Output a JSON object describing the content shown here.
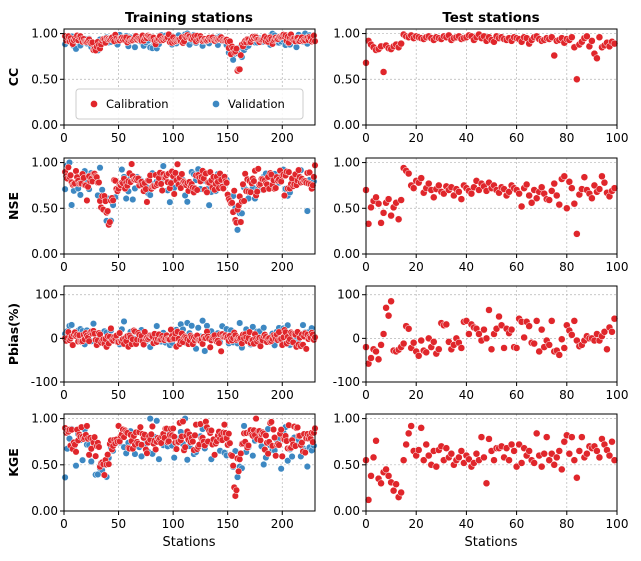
{
  "chart_data": {
    "type": "scatter",
    "column_titles": [
      "Training stations",
      "Test stations"
    ],
    "xlabel": "Stations",
    "legend": {
      "placement": "lower-center (CC training panel)",
      "entries": [
        {
          "name": "Calibration",
          "color": "#e0262b"
        },
        {
          "name": "Validation",
          "color": "#3d88c2"
        }
      ]
    },
    "colors": {
      "calibration": "#e0262b",
      "validation": "#3d88c2",
      "grid": "#b5b5b5",
      "axis": "#000000"
    },
    "training": {
      "xlim": [
        0,
        230
      ],
      "xticks": [
        0,
        50,
        100,
        150,
        200
      ],
      "xtick_labels": [
        "0",
        "50",
        "100",
        "150",
        "200"
      ],
      "n": 230
    },
    "test": {
      "xlim": [
        0,
        100
      ],
      "xticks": [
        0,
        20,
        40,
        60,
        80,
        100
      ],
      "xtick_labels": [
        "0",
        "20",
        "40",
        "60",
        "80",
        "100"
      ],
      "n": 100
    },
    "metrics": [
      {
        "name": "CC",
        "ylim": [
          0,
          1.05
        ],
        "yticks": [
          0,
          0.5,
          1.0
        ],
        "ytick_labels": [
          "0.00",
          "0.50",
          "1.00"
        ],
        "training_cal": {
          "base": 0.94,
          "spread": 0.04,
          "low": 0.0,
          "high": 1.0
        },
        "training_val": {
          "base": 0.92,
          "spread": 0.07,
          "low": 0.0,
          "high": 1.0
        },
        "training_dips": [
          {
            "center": 158,
            "width": 6,
            "depth": 0.25
          },
          {
            "center": 30,
            "width": 5,
            "depth": 0.1
          }
        ],
        "test": [
          0.68,
          0.92,
          0.88,
          0.85,
          0.82,
          0.83,
          0.86,
          0.58,
          0.87,
          0.84,
          0.83,
          0.86,
          0.88,
          0.85,
          0.89,
          0.99,
          0.97,
          0.96,
          0.98,
          0.95,
          0.97,
          0.96,
          0.95,
          0.94,
          0.96,
          0.97,
          0.95,
          0.93,
          0.96,
          0.95,
          0.94,
          0.97,
          0.96,
          0.98,
          0.93,
          0.95,
          0.96,
          0.97,
          0.94,
          0.95,
          0.96,
          0.98,
          0.97,
          0.93,
          0.96,
          0.99,
          0.95,
          0.97,
          0.92,
          0.96,
          0.93,
          0.91,
          0.97,
          0.95,
          0.96,
          0.94,
          0.93,
          0.95,
          0.92,
          0.96,
          0.95,
          0.94,
          0.91,
          0.96,
          0.95,
          0.89,
          0.93,
          0.96,
          0.97,
          0.94,
          0.92,
          0.93,
          0.95,
          0.94,
          0.96,
          0.76,
          0.92,
          0.93,
          0.95,
          0.9,
          0.94,
          0.93,
          0.96,
          0.85,
          0.5,
          0.88,
          0.91,
          0.95,
          0.97,
          0.86,
          0.92,
          0.78,
          0.73,
          0.96,
          0.85,
          0.87,
          0.9,
          0.86,
          0.91,
          0.89
        ]
      },
      {
        "name": "NSE",
        "ylim": [
          0,
          1.05
        ],
        "yticks": [
          0,
          0.5,
          1.0
        ],
        "ytick_labels": [
          "0.00",
          "0.50",
          "1.00"
        ],
        "training_cal": {
          "base": 0.8,
          "spread": 0.12,
          "low": 0.0,
          "high": 1.0
        },
        "training_val": {
          "base": 0.75,
          "spread": 0.2,
          "low": 0.0,
          "high": 1.0
        },
        "training_dips": [
          {
            "center": 157,
            "width": 6,
            "depth": 0.45
          },
          {
            "center": 38,
            "width": 7,
            "depth": 0.3
          }
        ],
        "test": [
          0.7,
          0.33,
          0.51,
          0.58,
          0.62,
          0.55,
          0.34,
          0.45,
          0.56,
          0.6,
          0.42,
          0.51,
          0.56,
          0.38,
          0.59,
          0.94,
          0.91,
          0.88,
          0.75,
          0.72,
          0.8,
          0.78,
          0.83,
          0.67,
          0.72,
          0.77,
          0.7,
          0.62,
          0.71,
          0.75,
          0.68,
          0.66,
          0.74,
          0.7,
          0.73,
          0.64,
          0.71,
          0.68,
          0.6,
          0.75,
          0.72,
          0.69,
          0.66,
          0.73,
          0.8,
          0.7,
          0.77,
          0.74,
          0.69,
          0.78,
          0.72,
          0.75,
          0.7,
          0.67,
          0.73,
          0.71,
          0.64,
          0.68,
          0.75,
          0.72,
          0.7,
          0.66,
          0.52,
          0.72,
          0.76,
          0.64,
          0.56,
          0.7,
          0.61,
          0.68,
          0.73,
          0.66,
          0.6,
          0.59,
          0.69,
          0.77,
          0.64,
          0.54,
          0.82,
          0.85,
          0.5,
          0.79,
          0.72,
          0.55,
          0.22,
          0.65,
          0.71,
          0.84,
          0.7,
          0.66,
          0.61,
          0.75,
          0.68,
          0.71,
          0.85,
          0.78,
          0.67,
          0.63,
          0.69,
          0.72
        ]
      },
      {
        "name": "Pbias(%)",
        "ylim": [
          -100,
          120
        ],
        "yticks": [
          -100,
          0,
          100
        ],
        "ytick_labels": [
          "-100",
          "0",
          "100"
        ],
        "training_cal": {
          "base": 0,
          "spread": 16,
          "low": -60,
          "high": 60
        },
        "training_val": {
          "base": 5,
          "spread": 25,
          "low": -60,
          "high": 110
        },
        "training_dips": [],
        "test": [
          -20,
          -58,
          -45,
          -25,
          -30,
          -48,
          -15,
          10,
          70,
          52,
          85,
          -28,
          -30,
          -26,
          -20,
          -12,
          28,
          22,
          -22,
          -10,
          -30,
          -40,
          -5,
          -28,
          -32,
          0,
          -20,
          -8,
          -35,
          -25,
          35,
          30,
          32,
          -8,
          -25,
          -15,
          0,
          -10,
          -22,
          38,
          40,
          10,
          32,
          25,
          22,
          10,
          -5,
          20,
          0,
          65,
          -25,
          10,
          22,
          50,
          30,
          -22,
          22,
          12,
          20,
          -20,
          -22,
          45,
          38,
          2,
          38,
          28,
          -10,
          -12,
          40,
          -30,
          20,
          -20,
          -5,
          -15,
          40,
          -30,
          -28,
          -38,
          -2,
          -22,
          30,
          18,
          8,
          40,
          -5,
          -18,
          -15,
          -5,
          5,
          0,
          0,
          -5,
          10,
          -5,
          5,
          15,
          -25,
          25,
          15,
          45
        ]
      },
      {
        "name": "KGE",
        "ylim": [
          0,
          1.05
        ],
        "yticks": [
          0,
          0.5,
          1.0
        ],
        "ytick_labels": [
          "0.00",
          "0.50",
          "1.00"
        ],
        "training_cal": {
          "base": 0.78,
          "spread": 0.14,
          "low": 0.0,
          "high": 1.0
        },
        "training_val": {
          "base": 0.72,
          "spread": 0.2,
          "low": 0.0,
          "high": 1.0
        },
        "training_dips": [
          {
            "center": 157,
            "width": 4,
            "depth": 0.5
          },
          {
            "center": 35,
            "width": 6,
            "depth": 0.25
          }
        ],
        "test": [
          0.55,
          0.12,
          0.38,
          0.58,
          0.76,
          0.35,
          0.3,
          0.42,
          0.45,
          0.38,
          0.31,
          0.22,
          0.29,
          0.15,
          0.2,
          0.55,
          0.72,
          0.84,
          0.92,
          0.65,
          0.6,
          0.66,
          0.9,
          0.55,
          0.72,
          0.6,
          0.5,
          0.65,
          0.48,
          0.66,
          0.7,
          0.55,
          0.68,
          0.58,
          0.62,
          0.5,
          0.55,
          0.58,
          0.65,
          0.52,
          0.6,
          0.56,
          0.48,
          0.52,
          0.62,
          0.55,
          0.8,
          0.58,
          0.3,
          0.78,
          0.65,
          0.55,
          0.68,
          0.68,
          0.7,
          0.58,
          0.68,
          0.55,
          0.72,
          0.65,
          0.48,
          0.72,
          0.52,
          0.68,
          0.6,
          0.65,
          0.55,
          0.52,
          0.84,
          0.6,
          0.48,
          0.62,
          0.8,
          0.55,
          0.62,
          0.5,
          0.58,
          0.65,
          0.45,
          0.75,
          0.82,
          0.62,
          0.8,
          0.55,
          0.36,
          0.65,
          0.8,
          0.58,
          0.62,
          0.7,
          0.68,
          0.7,
          0.65,
          0.58,
          0.78,
          0.72,
          0.66,
          0.6,
          0.75,
          0.55
        ]
      }
    ]
  }
}
